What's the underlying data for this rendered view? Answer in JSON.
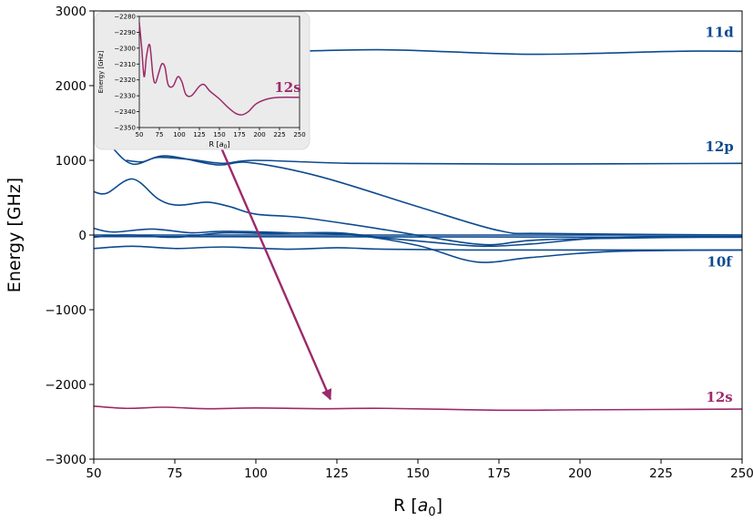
{
  "chart_data": {
    "type": "line",
    "main": {
      "xlabel": "R [a0]",
      "ylabel": "Energy [GHz]",
      "xlim": [
        50,
        250
      ],
      "ylim": [
        -3000,
        3000
      ],
      "xticks": [
        50,
        75,
        100,
        125,
        150,
        175,
        200,
        225,
        250
      ],
      "yticks": [
        -3000,
        -2000,
        -1000,
        0,
        1000,
        2000,
        3000
      ],
      "series": [
        {
          "color": "#0d4a8f",
          "points": [
            [
              105,
              2450
            ],
            [
              140,
              2480
            ],
            [
              185,
              2420
            ],
            [
              230,
              2460
            ],
            [
              250,
              2460
            ]
          ]
        },
        {
          "color": "#0d4a8f",
          "points": [
            [
              60,
              1000
            ],
            [
              65,
              980
            ],
            [
              70,
              1040
            ],
            [
              80,
              1010
            ],
            [
              90,
              960
            ],
            [
              100,
              1000
            ],
            [
              130,
              960
            ],
            [
              180,
              950
            ],
            [
              250,
              960
            ]
          ]
        },
        {
          "color": "#0d4a8f",
          "points": [
            [
              50,
              1400
            ],
            [
              55,
              1200
            ],
            [
              62,
              950
            ],
            [
              72,
              1060
            ],
            [
              88,
              940
            ],
            [
              98,
              970
            ],
            [
              120,
              780
            ],
            [
              150,
              380
            ],
            [
              175,
              60
            ],
            [
              190,
              20
            ],
            [
              250,
              0
            ]
          ]
        },
        {
          "color": "#0d4a8f",
          "points": [
            [
              50,
              580
            ],
            [
              54,
              560
            ],
            [
              62,
              750
            ],
            [
              70,
              480
            ],
            [
              76,
              400
            ],
            [
              85,
              440
            ],
            [
              92,
              380
            ],
            [
              100,
              280
            ],
            [
              115,
              230
            ],
            [
              140,
              70
            ],
            [
              155,
              -40
            ],
            [
              172,
              -130
            ],
            [
              190,
              -60
            ],
            [
              250,
              -20
            ]
          ]
        },
        {
          "color": "#0d4a8f",
          "points": [
            [
              50,
              90
            ],
            [
              56,
              40
            ],
            [
              68,
              80
            ],
            [
              80,
              30
            ],
            [
              90,
              50
            ],
            [
              110,
              30
            ],
            [
              130,
              0
            ],
            [
              150,
              -140
            ],
            [
              168,
              -360
            ],
            [
              185,
              -300
            ],
            [
              210,
              -220
            ],
            [
              250,
              -200
            ]
          ]
        },
        {
          "color": "#0d4a8f",
          "points": [
            [
              50,
              -30
            ],
            [
              55,
              -10
            ],
            [
              62,
              0
            ],
            [
              75,
              -30
            ],
            [
              90,
              30
            ],
            [
              105,
              20
            ],
            [
              125,
              30
            ],
            [
              140,
              -40
            ],
            [
              155,
              -100
            ],
            [
              170,
              -150
            ],
            [
              185,
              -120
            ],
            [
              210,
              -30
            ],
            [
              250,
              -20
            ]
          ]
        },
        {
          "color": "#0d4a8f",
          "points": [
            [
              50,
              0
            ],
            [
              250,
              0
            ]
          ]
        },
        {
          "color": "#0d4a8f",
          "points": [
            [
              50,
              -180
            ],
            [
              62,
              -150
            ],
            [
              75,
              -180
            ],
            [
              90,
              -160
            ],
            [
              110,
              -190
            ],
            [
              125,
              -170
            ],
            [
              140,
              -190
            ],
            [
              165,
              -200
            ],
            [
              200,
              -200
            ],
            [
              250,
              -200
            ]
          ]
        },
        {
          "color": "#0d4a8f",
          "points": [
            [
              50,
              -20
            ],
            [
              250,
              -30
            ]
          ]
        },
        {
          "color": "#9c2a6b",
          "points": [
            [
              50,
              -2290
            ],
            [
              60,
              -2320
            ],
            [
              72,
              -2305
            ],
            [
              85,
              -2325
            ],
            [
              100,
              -2315
            ],
            [
              120,
              -2325
            ],
            [
              140,
              -2320
            ],
            [
              175,
              -2345
            ],
            [
              200,
              -2340
            ],
            [
              250,
              -2330
            ]
          ]
        }
      ],
      "annotations": [
        {
          "text": "11d",
          "x": 243,
          "y": 2650,
          "color": "#0d4a8f"
        },
        {
          "text": "12p",
          "x": 243,
          "y": 1120,
          "color": "#0d4a8f"
        },
        {
          "text": "10f",
          "x": 243,
          "y": -420,
          "color": "#0d4a8f"
        },
        {
          "text": "12s",
          "x": 243,
          "y": -2230,
          "color": "#9c2a6b"
        }
      ],
      "arrow": {
        "from": [
          87,
          1400
        ],
        "to": [
          123,
          -2200
        ],
        "color": "#9c2a6b"
      }
    },
    "inset": {
      "xlabel": "R [a0]",
      "ylabel": "Energy [GHz]",
      "xlim": [
        50,
        250
      ],
      "ylim": [
        -2350,
        -2280
      ],
      "xticks": [
        50,
        75,
        100,
        125,
        150,
        175,
        200,
        225,
        250
      ],
      "yticks": [
        -2350,
        -2340,
        -2330,
        -2320,
        -2310,
        -2300,
        -2290,
        -2280
      ],
      "label": {
        "text": "12s",
        "color": "#9c2a6b"
      },
      "series": [
        {
          "color": "#9c2a6b",
          "points": [
            [
              50,
              -2284
            ],
            [
              53,
              -2300
            ],
            [
              56,
              -2318
            ],
            [
              59,
              -2305
            ],
            [
              63,
              -2298
            ],
            [
              67,
              -2317
            ],
            [
              70,
              -2322
            ],
            [
              74,
              -2316
            ],
            [
              78,
              -2310
            ],
            [
              82,
              -2312
            ],
            [
              86,
              -2323
            ],
            [
              92,
              -2324
            ],
            [
              98,
              -2318
            ],
            [
              103,
              -2321
            ],
            [
              108,
              -2329
            ],
            [
              115,
              -2330
            ],
            [
              125,
              -2324
            ],
            [
              131,
              -2323
            ],
            [
              138,
              -2327
            ],
            [
              150,
              -2332
            ],
            [
              160,
              -2337
            ],
            [
              170,
              -2341
            ],
            [
              178,
              -2342
            ],
            [
              186,
              -2340
            ],
            [
              196,
              -2335
            ],
            [
              210,
              -2332
            ],
            [
              225,
              -2331
            ],
            [
              250,
              -2331
            ]
          ]
        }
      ]
    }
  }
}
